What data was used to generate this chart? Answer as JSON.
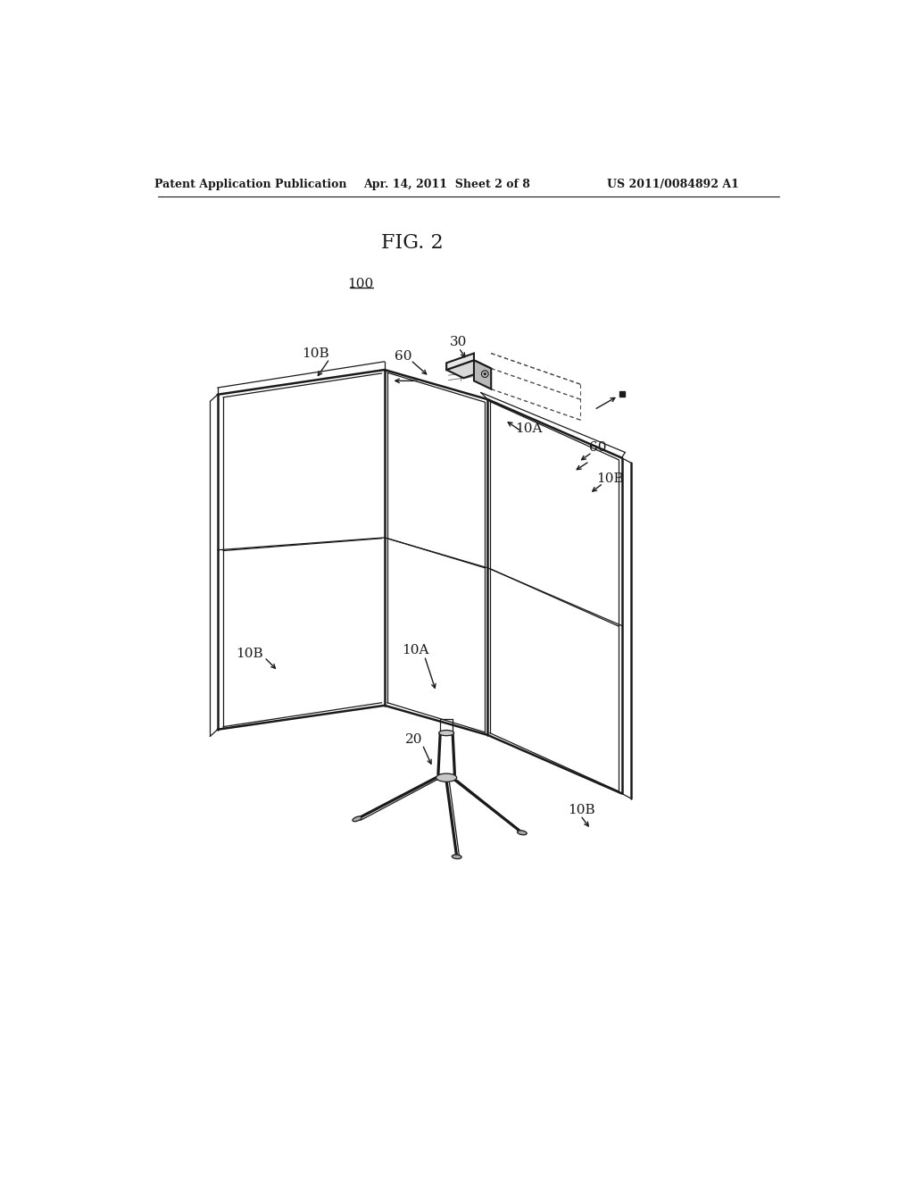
{
  "background_color": "#ffffff",
  "header_left": "Patent Application Publication",
  "header_center": "Apr. 14, 2011  Sheet 2 of 8",
  "header_right": "US 2011/0084892 A1",
  "fig_label": "FIG. 2",
  "ref_100": "100",
  "line_color": "#1a1a1a",
  "line_width": 1.8,
  "thin_line": 0.9
}
